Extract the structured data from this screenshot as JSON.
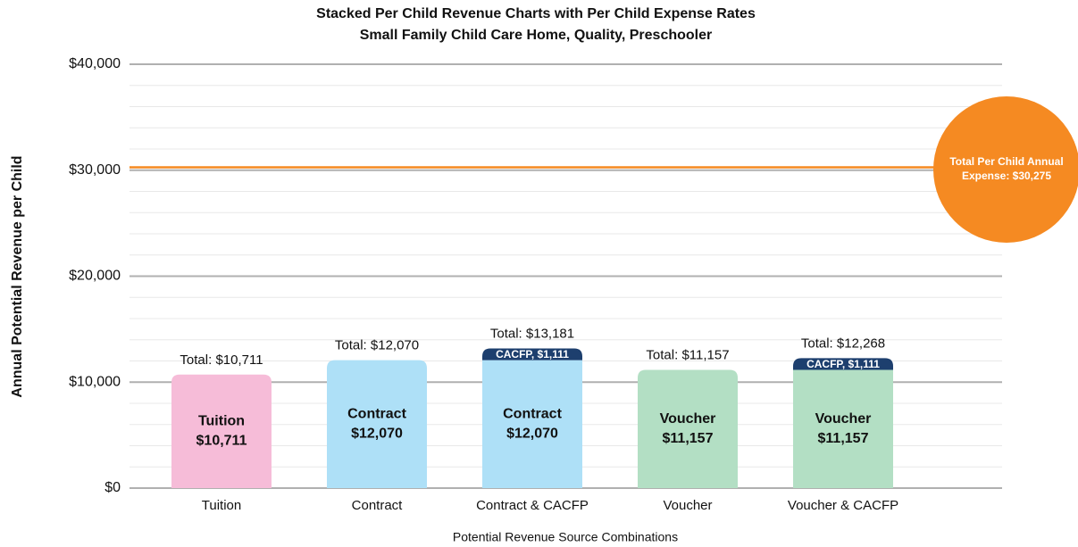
{
  "chart_data": {
    "type": "stacked_bar",
    "title": "Stacked Per Child Revenue Charts with Per Child Expense  Rates",
    "subtitle": "Small Family Child Care Home, Quality, Preschooler",
    "y_label": "Annual Potential Revenue per Child",
    "x_label": "Potential Revenue Source Combinations",
    "categories": [
      "Tuition",
      "Contract",
      "Contract & CACFP",
      "Voucher",
      "Voucher & CACFP"
    ],
    "series": [
      {
        "name": "Tuition",
        "color": "#f6bcd8",
        "values": [
          10711,
          null,
          null,
          null,
          null
        ],
        "value_labels": [
          "$10,711",
          null,
          null,
          null,
          null
        ]
      },
      {
        "name": "Contract",
        "color": "#aee0f7",
        "values": [
          null,
          12070,
          12070,
          null,
          null
        ],
        "value_labels": [
          null,
          "$12,070",
          "$12,070",
          null,
          null
        ]
      },
      {
        "name": "Voucher",
        "color": "#b3dfc4",
        "values": [
          null,
          null,
          null,
          11157,
          11157
        ],
        "value_labels": [
          null,
          null,
          null,
          "$11,157",
          "$11,157"
        ]
      },
      {
        "name": "CACFP",
        "color": "#1d3f6e",
        "values": [
          null,
          null,
          1111,
          null,
          1111
        ],
        "value_labels": [
          null,
          null,
          "CACFP, $1,111",
          null,
          "CACFP, $1,111"
        ]
      }
    ],
    "total_labels": [
      "Total: $10,711",
      "Total: $12,070",
      "Total: $13,181",
      "Total: $11,157",
      "Total: $12,268"
    ],
    "reference_line": {
      "value": 30275,
      "label": "Total Per Child Annual Expense: $30,275",
      "color": "#f58a22"
    },
    "ylim": [
      0,
      40000
    ],
    "yticks": [
      {
        "value": 0,
        "label": "$0"
      },
      {
        "value": 10000,
        "label": "$10,000"
      },
      {
        "value": 20000,
        "label": "$20,000"
      },
      {
        "value": 30000,
        "label": "$30,000"
      },
      {
        "value": 40000,
        "label": "$40,000"
      }
    ],
    "minor_ytick_step": 2000,
    "grid": true
  }
}
